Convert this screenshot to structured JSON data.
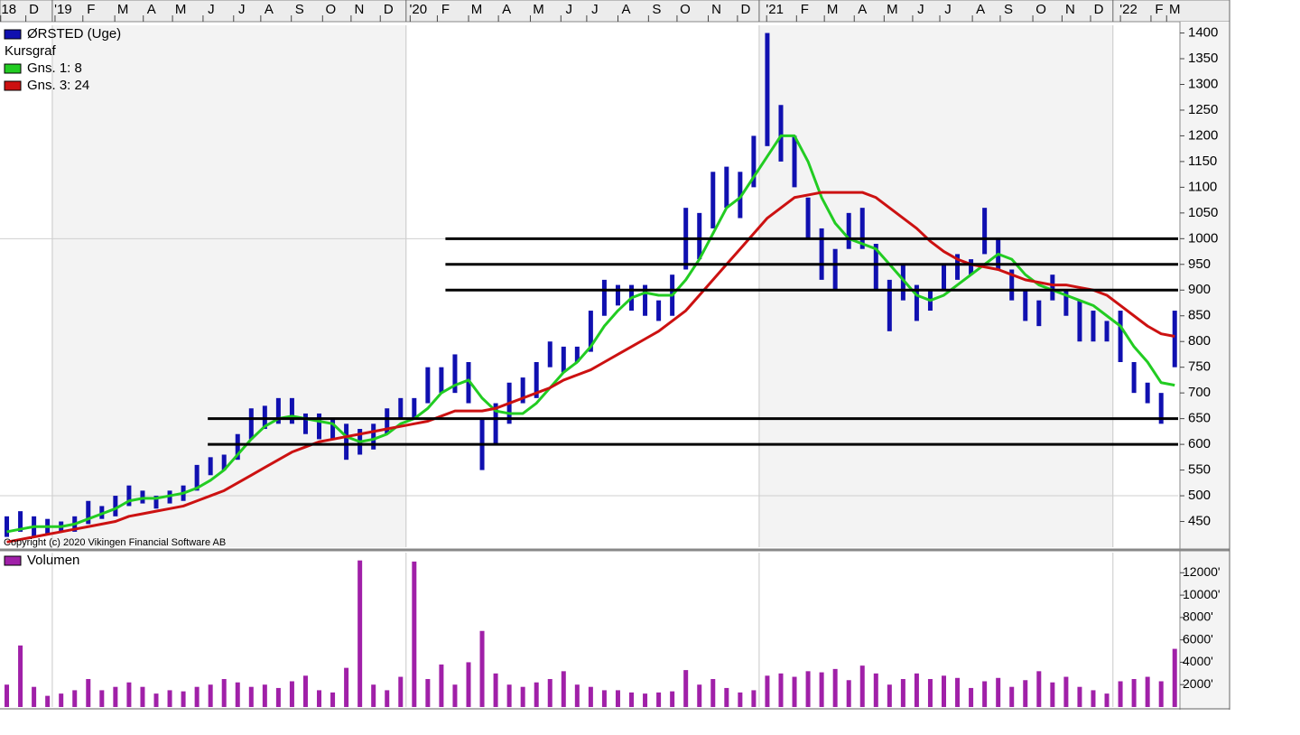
{
  "chart_data": [
    {
      "type": "hilo",
      "annotation": "Copyright (c) 2020 Vikingen Financial Software AB",
      "legend_note": "Kursgraf",
      "x": [
        1,
        3,
        5,
        7,
        9,
        11,
        13,
        15,
        17,
        19,
        21,
        23,
        25,
        27,
        29,
        31,
        33,
        35,
        37,
        39,
        41,
        43,
        45,
        47,
        49,
        51,
        53,
        55,
        57,
        59,
        61,
        63,
        65,
        67,
        69,
        71,
        73,
        75,
        77,
        79,
        81,
        83,
        85,
        87,
        89,
        91,
        93,
        95,
        97,
        99,
        101,
        103,
        105,
        107,
        109,
        111,
        113,
        115,
        117,
        119,
        121,
        123,
        125,
        127,
        129,
        131,
        133,
        135,
        137,
        139,
        141,
        143,
        145,
        147,
        149,
        151,
        153,
        155,
        157,
        159,
        161,
        163,
        165,
        167,
        169,
        171,
        173
      ],
      "series": [
        {
          "name": "ØRSTED (Uge)",
          "color": "#1010b0",
          "high": [
            460,
            470,
            460,
            455,
            450,
            460,
            490,
            480,
            500,
            520,
            510,
            500,
            510,
            520,
            560,
            575,
            580,
            620,
            670,
            675,
            690,
            690,
            660,
            660,
            650,
            640,
            630,
            640,
            670,
            690,
            690,
            750,
            750,
            775,
            760,
            650,
            680,
            720,
            730,
            760,
            800,
            790,
            790,
            860,
            920,
            910,
            910,
            910,
            880,
            930,
            1060,
            1050,
            1130,
            1140,
            1130,
            1200,
            1400,
            1260,
            1200,
            1080,
            1020,
            980,
            1050,
            1060,
            990,
            920,
            950,
            910,
            900,
            950,
            970,
            960,
            1060,
            1000,
            940,
            900,
            880,
            930,
            900,
            880,
            860,
            840,
            860,
            760,
            720,
            700,
            860
          ],
          "low": [
            420,
            430,
            420,
            425,
            430,
            430,
            445,
            455,
            460,
            480,
            485,
            475,
            485,
            490,
            510,
            540,
            550,
            570,
            610,
            630,
            640,
            640,
            620,
            610,
            610,
            570,
            580,
            590,
            620,
            650,
            650,
            680,
            700,
            700,
            680,
            550,
            600,
            640,
            680,
            690,
            750,
            740,
            760,
            780,
            850,
            870,
            860,
            850,
            840,
            850,
            940,
            960,
            1020,
            1060,
            1040,
            1100,
            1180,
            1150,
            1100,
            1000,
            920,
            900,
            980,
            980,
            900,
            820,
            880,
            840,
            860,
            900,
            920,
            930,
            970,
            940,
            880,
            840,
            830,
            880,
            850,
            800,
            800,
            800,
            760,
            700,
            680,
            640,
            750
          ]
        },
        {
          "name": "Gns. 1: 8",
          "color": "#22cc22",
          "values": [
            430,
            435,
            440,
            440,
            440,
            445,
            455,
            465,
            475,
            490,
            495,
            495,
            500,
            505,
            515,
            530,
            550,
            580,
            610,
            635,
            650,
            655,
            650,
            645,
            640,
            615,
            605,
            610,
            620,
            640,
            650,
            670,
            700,
            715,
            725,
            690,
            665,
            660,
            660,
            680,
            710,
            740,
            760,
            790,
            830,
            860,
            885,
            895,
            890,
            890,
            920,
            960,
            1010,
            1060,
            1080,
            1120,
            1160,
            1200,
            1200,
            1150,
            1080,
            1030,
            1000,
            990,
            980,
            950,
            920,
            890,
            880,
            890,
            910,
            930,
            950,
            970,
            960,
            930,
            910,
            900,
            890,
            880,
            870,
            850,
            830,
            790,
            760,
            720,
            715
          ]
        },
        {
          "name": "Gns. 3: 24",
          "color": "#cc1111",
          "values": [
            410,
            415,
            420,
            425,
            430,
            435,
            440,
            445,
            450,
            460,
            465,
            470,
            475,
            480,
            490,
            500,
            510,
            525,
            540,
            555,
            570,
            585,
            595,
            605,
            610,
            615,
            620,
            625,
            630,
            635,
            640,
            645,
            655,
            665,
            665,
            665,
            670,
            680,
            690,
            700,
            710,
            725,
            735,
            745,
            760,
            775,
            790,
            805,
            820,
            840,
            860,
            890,
            920,
            950,
            980,
            1010,
            1040,
            1060,
            1080,
            1085,
            1090,
            1090,
            1090,
            1090,
            1080,
            1060,
            1040,
            1020,
            995,
            975,
            960,
            950,
            945,
            940,
            930,
            920,
            915,
            910,
            910,
            905,
            900,
            890,
            870,
            850,
            830,
            815,
            810
          ]
        }
      ],
      "hlines": [
        {
          "value": 1000,
          "from": 65.6
        },
        {
          "value": 950,
          "from": 65.6
        },
        {
          "value": 900,
          "from": 65.6
        },
        {
          "value": 650,
          "from": 30.6
        },
        {
          "value": 600,
          "from": 30.6
        }
      ],
      "xlim": [
        0,
        173.5
      ],
      "xticks": [
        {
          "value": 1.3,
          "label": "18"
        },
        {
          "value": 5,
          "label": "D"
        },
        {
          "value": 9.3,
          "label": "'19"
        },
        {
          "value": 13.4,
          "label": "F"
        },
        {
          "value": 18.1,
          "label": "M"
        },
        {
          "value": 22.3,
          "label": "A"
        },
        {
          "value": 26.6,
          "label": "M"
        },
        {
          "value": 31.1,
          "label": "J"
        },
        {
          "value": 35.6,
          "label": "J"
        },
        {
          "value": 39.6,
          "label": "A"
        },
        {
          "value": 44.1,
          "label": "S"
        },
        {
          "value": 48.7,
          "label": "O"
        },
        {
          "value": 52.9,
          "label": "N"
        },
        {
          "value": 57.2,
          "label": "D"
        },
        {
          "value": 61.6,
          "label": "'20"
        },
        {
          "value": 65.6,
          "label": "F"
        },
        {
          "value": 70.2,
          "label": "M"
        },
        {
          "value": 74.6,
          "label": "A"
        },
        {
          "value": 79.3,
          "label": "M"
        },
        {
          "value": 83.8,
          "label": "J"
        },
        {
          "value": 87.6,
          "label": "J"
        },
        {
          "value": 92.2,
          "label": "A"
        },
        {
          "value": 96.7,
          "label": "S"
        },
        {
          "value": 100.9,
          "label": "O"
        },
        {
          "value": 105.5,
          "label": "N"
        },
        {
          "value": 109.8,
          "label": "D"
        },
        {
          "value": 114.1,
          "label": "'21"
        },
        {
          "value": 118.5,
          "label": "F"
        },
        {
          "value": 122.6,
          "label": "M"
        },
        {
          "value": 127,
          "label": "A"
        },
        {
          "value": 131.4,
          "label": "M"
        },
        {
          "value": 135.6,
          "label": "J"
        },
        {
          "value": 139.6,
          "label": "J"
        },
        {
          "value": 144.4,
          "label": "A"
        },
        {
          "value": 148.5,
          "label": "S"
        },
        {
          "value": 153.3,
          "label": "O"
        },
        {
          "value": 157.6,
          "label": "N"
        },
        {
          "value": 161.8,
          "label": "D"
        },
        {
          "value": 166.2,
          "label": "'22"
        },
        {
          "value": 170.7,
          "label": "F"
        },
        {
          "value": 173,
          "label": "M"
        }
      ],
      "year_lines": [
        7.7,
        59.8,
        111.8,
        163.9
      ],
      "ylim": [
        400,
        1415
      ],
      "yticks": [
        450,
        500,
        550,
        600,
        650,
        700,
        750,
        800,
        850,
        900,
        950,
        1000,
        1050,
        1100,
        1150,
        1200,
        1250,
        1300,
        1350,
        1400
      ],
      "ygrid": [
        500,
        1000
      ]
    },
    {
      "type": "bar",
      "x": [
        1,
        3,
        5,
        7,
        9,
        11,
        13,
        15,
        17,
        19,
        21,
        23,
        25,
        27,
        29,
        31,
        33,
        35,
        37,
        39,
        41,
        43,
        45,
        47,
        49,
        51,
        53,
        55,
        57,
        59,
        61,
        63,
        65,
        67,
        69,
        71,
        73,
        75,
        77,
        79,
        81,
        83,
        85,
        87,
        89,
        91,
        93,
        95,
        97,
        99,
        101,
        103,
        105,
        107,
        109,
        111,
        113,
        115,
        117,
        119,
        121,
        123,
        125,
        127,
        129,
        131,
        133,
        135,
        137,
        139,
        141,
        143,
        145,
        147,
        149,
        151,
        153,
        155,
        157,
        159,
        161,
        163,
        165,
        167,
        169,
        171,
        173
      ],
      "series": [
        {
          "name": "Volumen",
          "color": "#a020a8",
          "values": [
            2000,
            5500,
            1800,
            1000,
            1200,
            1500,
            2500,
            1500,
            1800,
            2200,
            1800,
            1200,
            1500,
            1400,
            1800,
            2000,
            2500,
            2200,
            1800,
            2000,
            1700,
            2300,
            2800,
            1500,
            1300,
            3500,
            13100,
            2000,
            1500,
            2700,
            13000,
            2500,
            3800,
            2000,
            4000,
            6800,
            3000,
            2000,
            1800,
            2200,
            2500,
            3200,
            2000,
            1800,
            1500,
            1500,
            1300,
            1200,
            1300,
            1400,
            3300,
            2000,
            2500,
            1700,
            1300,
            1500,
            2800,
            3000,
            2700,
            3200,
            3100,
            3400,
            2400,
            3700,
            3000,
            2000,
            2500,
            3000,
            2500,
            2800,
            2600,
            1700,
            2300,
            2600,
            1800,
            2400,
            3200,
            2200,
            2700,
            1800,
            1500,
            1200,
            2300,
            2500,
            2700,
            2300,
            5200
          ]
        }
      ],
      "xlim": [
        0,
        173.5
      ],
      "ylim": [
        0,
        13800
      ],
      "yticks": [
        {
          "value": 2000,
          "label": "2000'"
        },
        {
          "value": 4000,
          "label": "4000'"
        },
        {
          "value": 6000,
          "label": "6000'"
        },
        {
          "value": 8000,
          "label": "8000'"
        },
        {
          "value": 10000,
          "label": "10000'"
        },
        {
          "value": 12000,
          "label": "12000'"
        }
      ]
    }
  ]
}
